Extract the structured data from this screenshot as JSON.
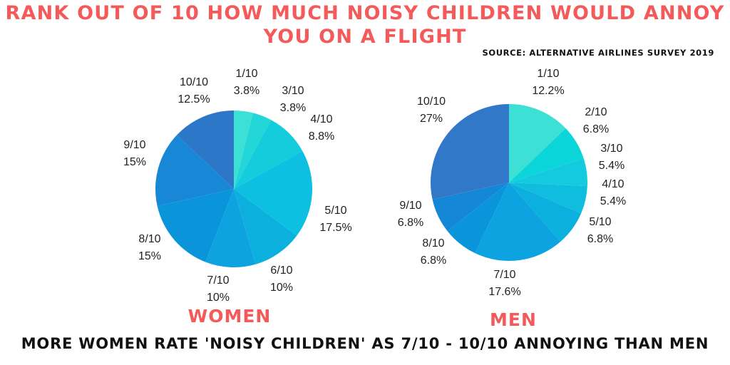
{
  "title": "RANK OUT OF 10 HOW MUCH NOISY CHILDREN WOULD ANNOY YOU ON A FLIGHT",
  "source": "SOURCE: ALTERNATIVE AIRLINES SURVEY 2019",
  "footer": "MORE WOMEN RATE 'NOISY CHILDREN' AS 7/10 - 10/10 ANNOYING THAN MEN",
  "chart_data": [
    {
      "type": "pie",
      "title": "WOMEN",
      "categories": [
        "1/10",
        "3/10",
        "4/10",
        "5/10",
        "6/10",
        "7/10",
        "8/10",
        "9/10",
        "10/10"
      ],
      "values": [
        3.8,
        3.8,
        8.8,
        17.5,
        10,
        10,
        15,
        15,
        12.5
      ],
      "value_labels": [
        "3.8%",
        "3.8%",
        "8.8%",
        "17.5%",
        "10%",
        "10%",
        "15%",
        "15%",
        "12.5%"
      ],
      "colors": [
        "#3de0d4",
        "#23d6d8",
        "#14ccdc",
        "#0dbfe0",
        "#0cb0de",
        "#0da3e0",
        "#0a95da",
        "#1888d6",
        "#2d77c8"
      ]
    },
    {
      "type": "pie",
      "title": "MEN",
      "categories": [
        "1/10",
        "2/10",
        "3/10",
        "4/10",
        "5/10",
        "7/10",
        "8/10",
        "9/10",
        "10/10"
      ],
      "values": [
        12.2,
        6.8,
        5.4,
        5.4,
        6.8,
        17.6,
        6.8,
        6.8,
        27
      ],
      "value_labels": [
        "12.2%",
        "6.8%",
        "5.4%",
        "5.4%",
        "6.8%",
        "17.6%",
        "6.8%",
        "6.8%",
        "27%"
      ],
      "colors": [
        "#3de0d4",
        "#0ad6da",
        "#13cade",
        "#0fbedf",
        "#0cb0de",
        "#0da3e0",
        "#0a95da",
        "#1488d7",
        "#3278c8"
      ]
    }
  ]
}
